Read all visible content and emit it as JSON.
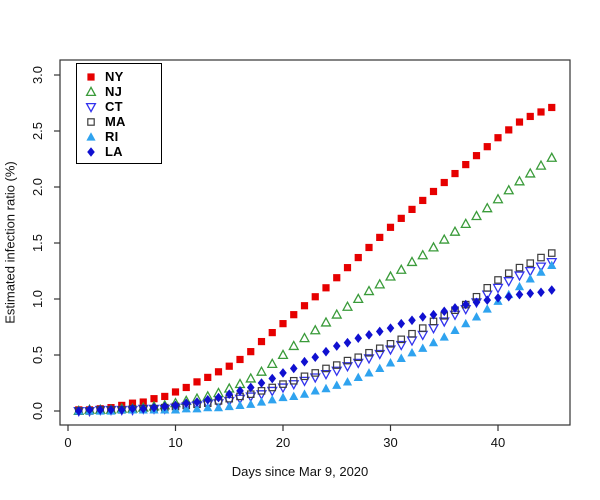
{
  "chart_data": {
    "type": "scatter",
    "title": "",
    "xlabel": "Days since Mar 9, 2020",
    "ylabel": "Estimated infection ratio (%)",
    "x_axis": {
      "tick_values": [
        0,
        10,
        20,
        30,
        40
      ],
      "tick_labels": [
        "0",
        "10",
        "20",
        "30",
        "40"
      ],
      "range": [
        0,
        46
      ]
    },
    "y_axis": {
      "tick_values": [
        0.0,
        0.5,
        1.0,
        1.5,
        2.0,
        2.5,
        3.0
      ],
      "tick_labels": [
        "0.0",
        "0.5",
        "1.0",
        "1.5",
        "2.0",
        "2.5",
        "3.0"
      ],
      "range": [
        0,
        3.0
      ]
    },
    "grid": false,
    "legend_position": "top-left",
    "days": [
      1,
      2,
      3,
      4,
      5,
      6,
      7,
      8,
      9,
      10,
      11,
      12,
      13,
      14,
      15,
      16,
      17,
      18,
      19,
      20,
      21,
      22,
      23,
      24,
      25,
      26,
      27,
      28,
      29,
      30,
      31,
      32,
      33,
      34,
      35,
      36,
      37,
      38,
      39,
      40,
      41,
      42,
      43,
      44,
      45
    ],
    "series": [
      {
        "name": "NY",
        "marker": "square-filled",
        "color": "#e60000",
        "values": [
          0.01,
          0.01,
          0.02,
          0.03,
          0.05,
          0.07,
          0.08,
          0.11,
          0.13,
          0.17,
          0.21,
          0.26,
          0.3,
          0.35,
          0.4,
          0.46,
          0.53,
          0.62,
          0.7,
          0.78,
          0.86,
          0.94,
          1.02,
          1.1,
          1.19,
          1.28,
          1.37,
          1.46,
          1.55,
          1.64,
          1.72,
          1.8,
          1.88,
          1.96,
          2.04,
          2.12,
          2.2,
          2.28,
          2.36,
          2.44,
          2.51,
          2.58,
          2.63,
          2.67,
          2.71
        ]
      },
      {
        "name": "NJ",
        "marker": "triangle-up-open",
        "color": "#3a9b3a",
        "values": [
          0.0,
          0.01,
          0.01,
          0.01,
          0.02,
          0.02,
          0.03,
          0.04,
          0.05,
          0.07,
          0.09,
          0.11,
          0.13,
          0.16,
          0.2,
          0.24,
          0.29,
          0.35,
          0.42,
          0.5,
          0.58,
          0.65,
          0.72,
          0.79,
          0.86,
          0.93,
          1.0,
          1.07,
          1.13,
          1.2,
          1.26,
          1.33,
          1.39,
          1.46,
          1.53,
          1.6,
          1.67,
          1.74,
          1.81,
          1.89,
          1.97,
          2.05,
          2.12,
          2.19,
          2.26
        ]
      },
      {
        "name": "CT",
        "marker": "triangle-down-open",
        "color": "#3333ee",
        "values": [
          0.0,
          0.0,
          0.01,
          0.01,
          0.01,
          0.01,
          0.02,
          0.02,
          0.02,
          0.03,
          0.04,
          0.05,
          0.06,
          0.07,
          0.09,
          0.11,
          0.13,
          0.15,
          0.18,
          0.21,
          0.24,
          0.27,
          0.3,
          0.33,
          0.36,
          0.4,
          0.43,
          0.47,
          0.51,
          0.55,
          0.59,
          0.63,
          0.68,
          0.74,
          0.8,
          0.86,
          0.91,
          0.97,
          1.04,
          1.1,
          1.16,
          1.21,
          1.25,
          1.29,
          1.33
        ]
      },
      {
        "name": "MA",
        "marker": "square-open",
        "color": "#3d3d3d",
        "values": [
          0.0,
          0.0,
          0.01,
          0.01,
          0.01,
          0.02,
          0.02,
          0.02,
          0.03,
          0.04,
          0.05,
          0.06,
          0.07,
          0.09,
          0.11,
          0.13,
          0.15,
          0.18,
          0.21,
          0.24,
          0.27,
          0.31,
          0.34,
          0.38,
          0.41,
          0.45,
          0.48,
          0.52,
          0.56,
          0.6,
          0.64,
          0.69,
          0.74,
          0.8,
          0.85,
          0.9,
          0.95,
          1.02,
          1.1,
          1.17,
          1.23,
          1.28,
          1.32,
          1.37,
          1.41
        ]
      },
      {
        "name": "RI",
        "marker": "triangle-up-filled",
        "color": "#2fa3ef",
        "values": [
          0.0,
          0.0,
          0.0,
          0.0,
          0.01,
          0.01,
          0.01,
          0.01,
          0.01,
          0.01,
          0.02,
          0.02,
          0.03,
          0.03,
          0.04,
          0.05,
          0.06,
          0.08,
          0.1,
          0.12,
          0.13,
          0.15,
          0.18,
          0.2,
          0.23,
          0.26,
          0.3,
          0.34,
          0.38,
          0.43,
          0.47,
          0.52,
          0.56,
          0.61,
          0.66,
          0.72,
          0.78,
          0.84,
          0.91,
          0.98,
          1.04,
          1.11,
          1.18,
          1.24,
          1.3
        ]
      },
      {
        "name": "LA",
        "marker": "diamond-filled",
        "color": "#1010d0",
        "values": [
          0.0,
          0.01,
          0.01,
          0.01,
          0.01,
          0.02,
          0.02,
          0.03,
          0.04,
          0.05,
          0.07,
          0.08,
          0.1,
          0.12,
          0.15,
          0.18,
          0.21,
          0.25,
          0.29,
          0.34,
          0.38,
          0.44,
          0.48,
          0.53,
          0.58,
          0.61,
          0.65,
          0.68,
          0.71,
          0.74,
          0.78,
          0.81,
          0.84,
          0.86,
          0.89,
          0.92,
          0.95,
          0.97,
          0.99,
          1.01,
          1.02,
          1.04,
          1.05,
          1.06,
          1.08
        ]
      }
    ]
  }
}
